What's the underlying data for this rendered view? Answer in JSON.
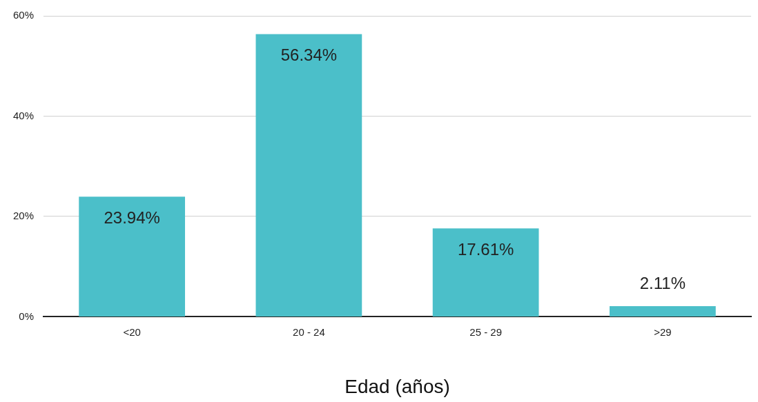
{
  "chart_data": {
    "type": "bar",
    "xlabel": "Edad (años)",
    "categories": [
      "<20",
      "20 - 24",
      "25 - 29",
      ">29"
    ],
    "values": [
      23.94,
      56.34,
      17.61,
      2.11
    ],
    "value_labels": [
      "23.94%",
      "56.34%",
      "17.61%",
      "2.11%"
    ],
    "color": "#4bbfc9",
    "ylim": [
      0,
      60
    ],
    "yticks": [
      {
        "value": 0,
        "label": "0%"
      },
      {
        "value": 20,
        "label": "20%"
      },
      {
        "value": 40,
        "label": "40%"
      },
      {
        "value": 60,
        "label": "60%"
      }
    ],
    "grid": "y",
    "legend": false
  }
}
